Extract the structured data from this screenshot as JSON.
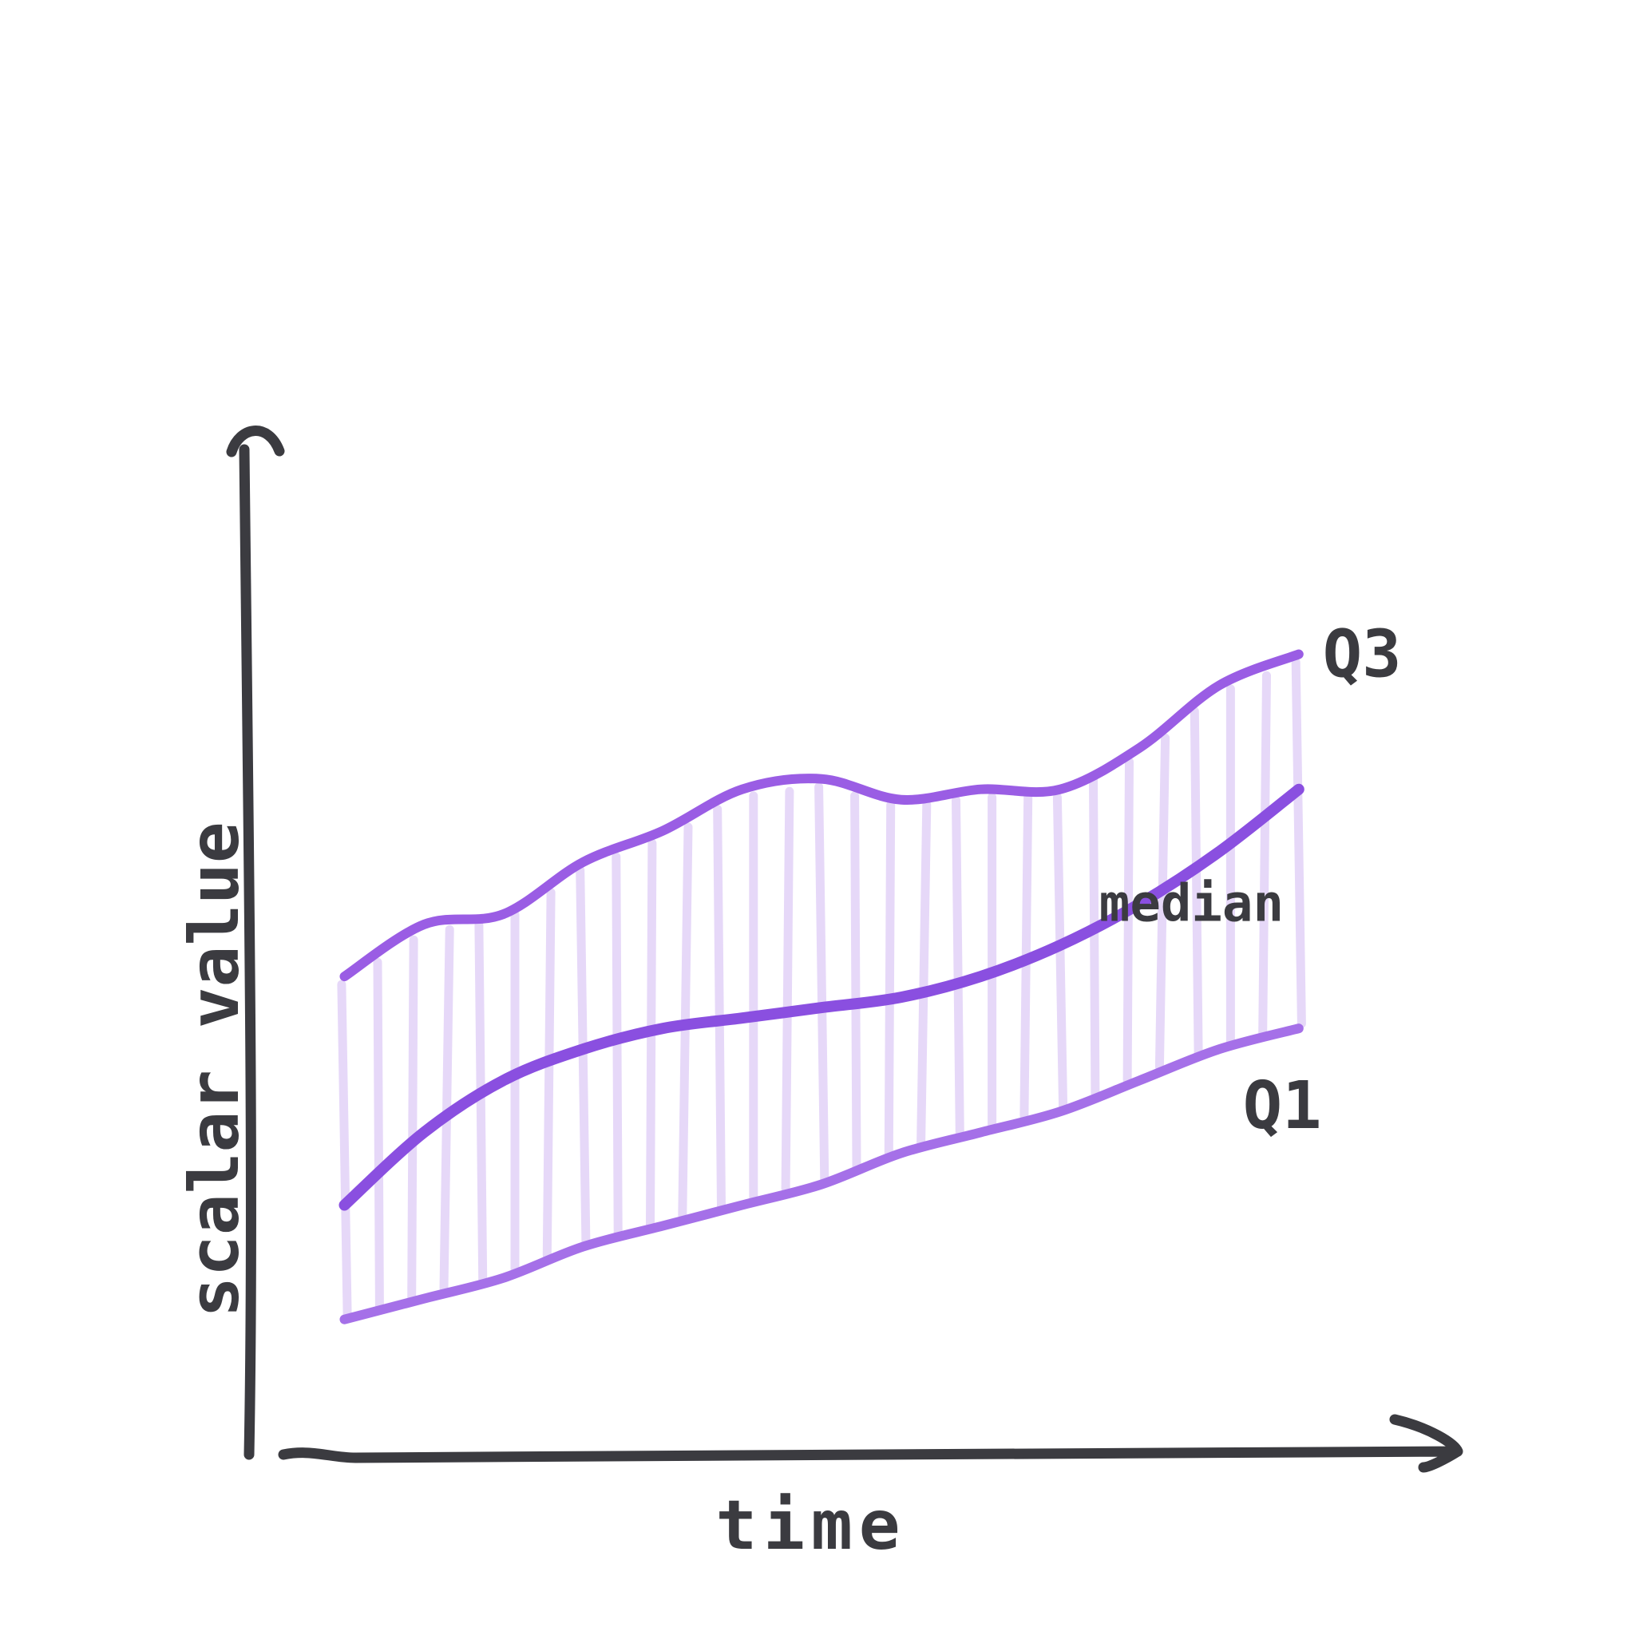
{
  "chart_data": {
    "type": "area",
    "xlabel": "time",
    "ylabel": "scalar value",
    "x": [
      0,
      1,
      2,
      3,
      4,
      5,
      6,
      7,
      8,
      9,
      10,
      11,
      12
    ],
    "series": [
      {
        "name": "Q3",
        "values": [
          4.6,
          5.1,
          5.2,
          5.7,
          6.0,
          6.4,
          6.5,
          6.3,
          6.4,
          6.4,
          6.8,
          7.4,
          7.7
        ]
      },
      {
        "name": "median",
        "values": [
          2.4,
          3.1,
          3.6,
          3.9,
          4.1,
          4.2,
          4.3,
          4.4,
          4.6,
          4.9,
          5.3,
          5.8,
          6.4
        ]
      },
      {
        "name": "Q1",
        "values": [
          1.3,
          1.5,
          1.7,
          2.0,
          2.2,
          2.4,
          2.6,
          2.9,
          3.1,
          3.3,
          3.6,
          3.9,
          4.1
        ]
      }
    ],
    "xlim": [
      -1.2,
      14
    ],
    "ylim": [
      0,
      10
    ],
    "grid": false,
    "legend": "inline labels at right end of each line",
    "colors": {
      "q3": "#9a5de4",
      "median": "#8a4fe0",
      "q1": "#a570e8",
      "band": "#b892ec",
      "axis": "#3b3b40"
    }
  }
}
